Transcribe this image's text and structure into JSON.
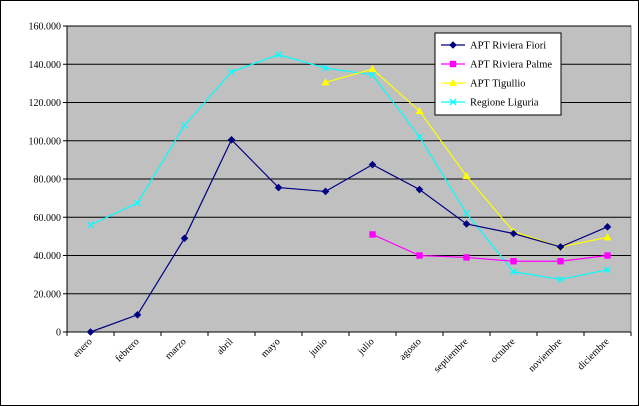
{
  "chart_data": {
    "type": "line",
    "title": "",
    "xlabel": "",
    "ylabel": "",
    "categories": [
      "enero",
      "febrero",
      "marzo",
      "abril",
      "mayo",
      "junio",
      "julio",
      "agosto",
      "septiembre",
      "octubre",
      "noviembre",
      "diciembre"
    ],
    "ylim": [
      0,
      160000
    ],
    "yticks": [
      0,
      20000,
      40000,
      60000,
      80000,
      100000,
      120000,
      140000,
      160000
    ],
    "ytick_labels": [
      "0",
      "20.000",
      "40.000",
      "60.000",
      "80.000",
      "100.000",
      "120.000",
      "140.000",
      "160.000"
    ],
    "grid": "horizontal",
    "plot_background": "#c0c0c0",
    "legend_position": "top-right",
    "series": [
      {
        "name": "APT Riviera Fiori",
        "color": "#000080",
        "marker": "diamond",
        "values": [
          0,
          9000,
          49000,
          100500,
          75500,
          73500,
          87500,
          74500,
          56500,
          51500,
          44500,
          55000
        ]
      },
      {
        "name": "APT Riviera Palme",
        "color": "#ff00ff",
        "marker": "square",
        "values": [
          null,
          null,
          null,
          null,
          null,
          null,
          51000,
          40000,
          39000,
          37000,
          37000,
          40000
        ]
      },
      {
        "name": "APT Tigullio",
        "color": "#ffff00",
        "marker": "triangle",
        "values": [
          null,
          null,
          null,
          null,
          null,
          130500,
          137500,
          115500,
          81500,
          52500,
          44500,
          49500
        ]
      },
      {
        "name": "Regione Liguria",
        "color": "#00ffff",
        "marker": "x",
        "values": [
          56000,
          67500,
          108000,
          136000,
          145000,
          138000,
          134500,
          102000,
          62000,
          31500,
          27500,
          32500
        ]
      }
    ]
  }
}
